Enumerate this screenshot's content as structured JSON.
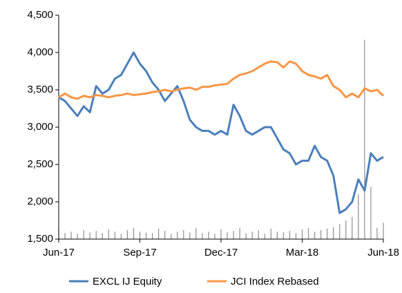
{
  "chart_data": {
    "type": "line",
    "xlim": [
      0,
      52
    ],
    "xticks": [
      {
        "value": 0,
        "label": "Jun-17"
      },
      {
        "value": 13,
        "label": "Sep-17"
      },
      {
        "value": 26,
        "label": "Dec-17"
      },
      {
        "value": 39,
        "label": "Mar-18"
      },
      {
        "value": 52,
        "label": "Jun-18"
      }
    ],
    "ylim": [
      1500,
      4500
    ],
    "yticks": [
      {
        "value": 1500,
        "label": "1,500"
      },
      {
        "value": 2000,
        "label": "2,000"
      },
      {
        "value": 2500,
        "label": "2,500"
      },
      {
        "value": 3000,
        "label": "3,000"
      },
      {
        "value": 3500,
        "label": "3,500"
      },
      {
        "value": 4000,
        "label": "4,000"
      },
      {
        "value": 4500,
        "label": "4,500"
      }
    ],
    "x": [
      0,
      1,
      2,
      3,
      4,
      5,
      6,
      7,
      8,
      9,
      10,
      11,
      12,
      13,
      14,
      15,
      16,
      17,
      18,
      19,
      20,
      21,
      22,
      23,
      24,
      25,
      26,
      27,
      28,
      29,
      30,
      31,
      32,
      33,
      34,
      35,
      36,
      37,
      38,
      39,
      40,
      41,
      42,
      43,
      44,
      45,
      46,
      47,
      48,
      49,
      50,
      51,
      52
    ],
    "series": [
      {
        "name": "EXCL IJ Equity",
        "color": "#4a7ebb",
        "values": [
          3400,
          3350,
          3250,
          3150,
          3280,
          3200,
          3550,
          3450,
          3500,
          3650,
          3700,
          3850,
          4000,
          3850,
          3750,
          3600,
          3500,
          3350,
          3450,
          3550,
          3350,
          3100,
          3000,
          2950,
          2950,
          2900,
          2950,
          2900,
          3300,
          3150,
          2950,
          2900,
          2950,
          3000,
          3000,
          2850,
          2700,
          2650,
          2500,
          2550,
          2550,
          2750,
          2600,
          2550,
          2350,
          1850,
          1900,
          2000,
          2300,
          2150,
          2650,
          2550,
          2600
        ]
      },
      {
        "name": "JCI Index Rebased",
        "color": "#f79646",
        "values": [
          3400,
          3450,
          3400,
          3380,
          3420,
          3400,
          3430,
          3420,
          3400,
          3420,
          3430,
          3450,
          3430,
          3440,
          3450,
          3470,
          3480,
          3500,
          3480,
          3500,
          3520,
          3530,
          3500,
          3540,
          3540,
          3560,
          3570,
          3580,
          3650,
          3700,
          3720,
          3750,
          3800,
          3850,
          3880,
          3870,
          3800,
          3880,
          3850,
          3750,
          3700,
          3680,
          3650,
          3700,
          3550,
          3500,
          3400,
          3450,
          3400,
          3520,
          3480,
          3500,
          3420
        ]
      }
    ],
    "bars": {
      "color": "#8c8c8c",
      "values": [
        1640,
        1580,
        1600,
        1570,
        1620,
        1590,
        1610,
        1580,
        1630,
        1600,
        1570,
        1620,
        1650,
        1600,
        1590,
        1580,
        1640,
        1610,
        1570,
        1600,
        1620,
        1590,
        1650,
        1580,
        1600,
        1570,
        1630,
        1590,
        1610,
        1650,
        1580,
        1600,
        1620,
        1570,
        1640,
        1600,
        1590,
        1610,
        1580,
        1630,
        1650,
        1600,
        1620,
        1640,
        1660,
        1700,
        1750,
        1800,
        2100,
        4170,
        2200,
        1650,
        1720
      ]
    }
  }
}
